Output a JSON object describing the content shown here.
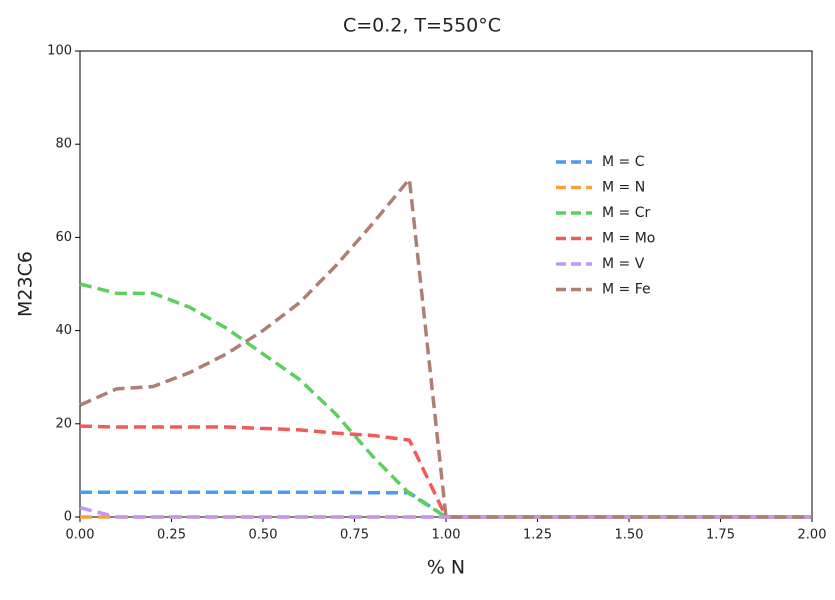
{
  "chart_data": {
    "type": "line",
    "title": "C=0.2, T=550°C",
    "x_label": "% N",
    "y_label": "M23C6",
    "x": [
      0,
      0.1,
      0.2,
      0.3,
      0.4,
      0.5,
      0.6,
      0.7,
      0.8,
      0.9,
      1.0,
      2.0
    ],
    "series": [
      {
        "name": "M = C",
        "color": "#4e9af1",
        "values": [
          5.3,
          5.3,
          5.3,
          5.3,
          5.3,
          5.3,
          5.3,
          5.3,
          5.2,
          5.2,
          0,
          0
        ]
      },
      {
        "name": "M = N",
        "color": "#f8a33a",
        "values": [
          0,
          0,
          0,
          0,
          0,
          0,
          0,
          0,
          0,
          0,
          0,
          0
        ]
      },
      {
        "name": "M = Cr",
        "color": "#5cd05c",
        "values": [
          50,
          48,
          48,
          45,
          40.5,
          35,
          29.5,
          22,
          13,
          5,
          0,
          0
        ]
      },
      {
        "name": "M = Mo",
        "color": "#f25a5a",
        "values": [
          19.5,
          19.3,
          19.3,
          19.3,
          19.3,
          19,
          18.7,
          18,
          17.5,
          16.5,
          0,
          0
        ]
      },
      {
        "name": "M = V",
        "color": "#c199f2",
        "values": [
          2,
          0,
          0,
          0,
          0,
          0,
          0,
          0,
          0,
          0,
          0,
          0
        ]
      },
      {
        "name": "M = Fe",
        "color": "#b07f74",
        "values": [
          24,
          27.5,
          28,
          31,
          35,
          40,
          46,
          54,
          63,
          72.5,
          0,
          0
        ]
      }
    ],
    "xlim": [
      0,
      2
    ],
    "xticks": [
      {
        "value": 0,
        "label": "0.00"
      },
      {
        "value": 0.25,
        "label": "0.25"
      },
      {
        "value": 0.5,
        "label": "0.50"
      },
      {
        "value": 0.75,
        "label": "0.75"
      },
      {
        "value": 1,
        "label": "1.00"
      },
      {
        "value": 1.25,
        "label": "1.25"
      },
      {
        "value": 1.5,
        "label": "1.50"
      },
      {
        "value": 1.75,
        "label": "1.75"
      },
      {
        "value": 2,
        "label": "2.00"
      }
    ],
    "ylim": [
      0,
      100
    ],
    "yticks": [
      0,
      20,
      40,
      60,
      80,
      100
    ]
  }
}
